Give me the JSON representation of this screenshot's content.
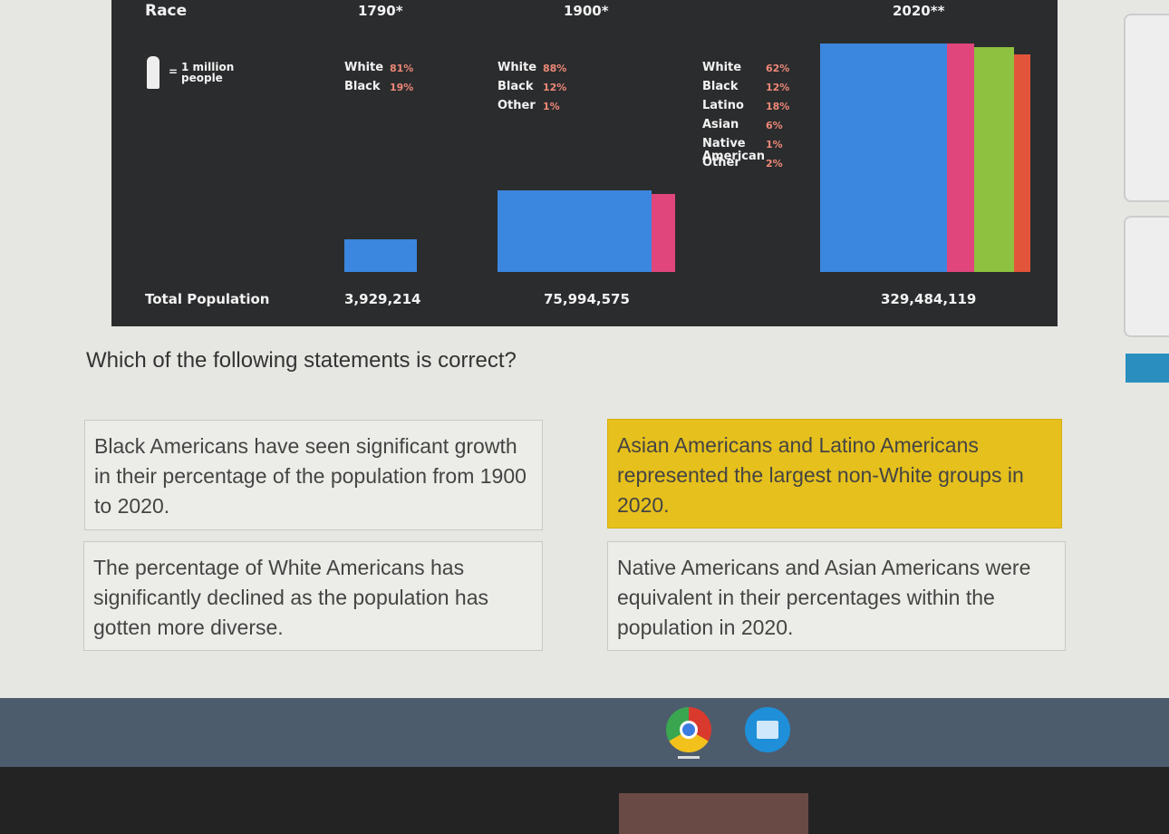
{
  "infographic": {
    "row_label": "Race",
    "years": [
      "1790*",
      "1900*",
      "2020**"
    ],
    "key": {
      "symbol": "=",
      "label": "1 million people"
    },
    "legends": [
      [
        {
          "group": "White",
          "share": "81%"
        },
        {
          "group": "Black",
          "share": "19%"
        }
      ],
      [
        {
          "group": "White",
          "share": "88%"
        },
        {
          "group": "Black",
          "share": "12%"
        },
        {
          "group": "Other",
          "share": "1%"
        }
      ],
      [
        {
          "group": "White",
          "share": "62%"
        },
        {
          "group": "Black",
          "share": "12%"
        },
        {
          "group": "Latino",
          "share": "18%"
        },
        {
          "group": "Asian",
          "share": "6%"
        },
        {
          "group": "Native American",
          "share": "1%"
        },
        {
          "group": "Other",
          "share": "2%"
        }
      ]
    ],
    "total_label": "Total Population",
    "totals": [
      "3,929,214",
      "75,994,575",
      "329,484,119"
    ]
  },
  "question": "Which of the following statements is correct?",
  "options": [
    {
      "text": "Black Americans have seen significant growth in their percentage of the population from 1900 to 2020.",
      "selected": false
    },
    {
      "text": "Asian Americans and Latino Americans represented the largest non-White groups in 2020.",
      "selected": true
    },
    {
      "text": "The percentage of White Americans has significantly declined as the population has gotten more diverse.",
      "selected": false
    },
    {
      "text": "Native Americans and Asian Americans were equivalent in their percentages within the population in 2020.",
      "selected": false
    }
  ]
}
